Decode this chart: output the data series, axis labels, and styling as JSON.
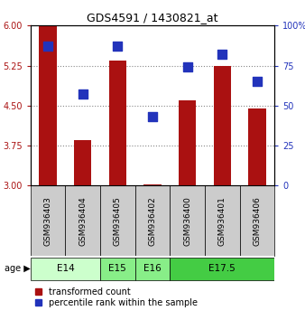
{
  "title": "GDS4591 / 1430821_at",
  "samples": [
    "GSM936403",
    "GSM936404",
    "GSM936405",
    "GSM936402",
    "GSM936400",
    "GSM936401",
    "GSM936406"
  ],
  "red_values": [
    6.0,
    3.85,
    5.35,
    3.02,
    4.6,
    5.25,
    4.45
  ],
  "blue_values": [
    87,
    57,
    87,
    43,
    74,
    82,
    65
  ],
  "ylim_left": [
    3,
    6
  ],
  "ylim_right": [
    0,
    100
  ],
  "yticks_left": [
    3,
    3.75,
    4.5,
    5.25,
    6
  ],
  "yticks_right": [
    0,
    25,
    50,
    75,
    100
  ],
  "age_groups": [
    {
      "label": "E14",
      "samples": [
        0,
        1
      ],
      "color": "#ccffcc"
    },
    {
      "label": "E15",
      "samples": [
        2
      ],
      "color": "#88ee88"
    },
    {
      "label": "E16",
      "samples": [
        3
      ],
      "color": "#88ee88"
    },
    {
      "label": "E17.5",
      "samples": [
        4,
        5,
        6
      ],
      "color": "#44cc44"
    }
  ],
  "bar_color": "#aa1111",
  "dot_color": "#2233bb",
  "sample_box_color": "#cccccc",
  "background_color": "#ffffff",
  "grid_color": "#888888",
  "bar_width": 0.5,
  "dot_size": 45,
  "legend_labels": [
    "transformed count",
    "percentile rank within the sample"
  ]
}
